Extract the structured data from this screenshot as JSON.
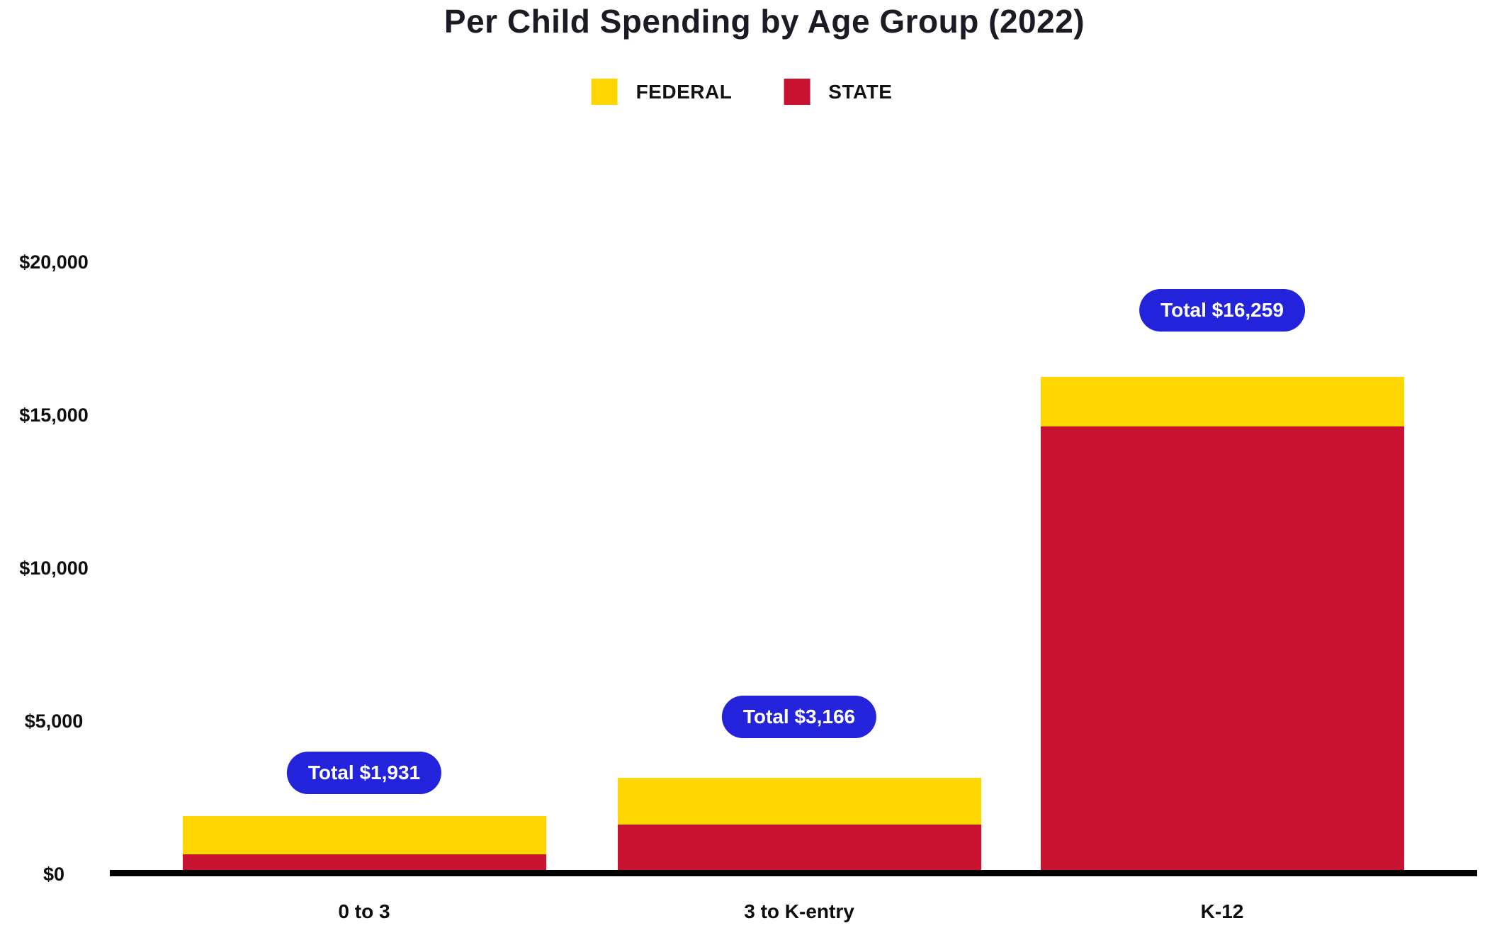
{
  "title": "Per Child Spending by Age Group (2022)",
  "legend": [
    {
      "label": "FEDERAL",
      "color": "#FFD602"
    },
    {
      "label": "STATE",
      "color": "#C9122F"
    }
  ],
  "colors": {
    "federal": "#FFD602",
    "state": "#C9122F",
    "badge": "#2323DC",
    "badge_text": "#FFFFFF",
    "axis": "#000000",
    "text": "#0D0D0D",
    "title_text": "#1B1B26"
  },
  "chart_data": {
    "type": "bar",
    "stacked": true,
    "title": "Per Child Spending by Age Group (2022)",
    "categories": [
      "0 to 3",
      "3 to K-entry",
      "K-12"
    ],
    "series": [
      {
        "name": "STATE",
        "color": "#C9122F",
        "values": [
          682,
          1641,
          14645
        ]
      },
      {
        "name": "FEDERAL",
        "color": "#FFD602",
        "values": [
          1249,
          1525,
          1614
        ]
      }
    ],
    "totals": [
      1931,
      3166,
      16259
    ],
    "total_badges": [
      "Total $1,931",
      "Total $3,166",
      "Total $16,259"
    ],
    "xlabel": "",
    "ylabel": "",
    "ylim": [
      0,
      20000
    ],
    "y_ticks": [
      {
        "label": "$0",
        "value": 0
      },
      {
        "label": "$5,000",
        "value": 5000
      },
      {
        "label": "$10,000",
        "value": 10000
      },
      {
        "label": "$15,000",
        "value": 15000
      },
      {
        "label": "$20,000",
        "value": 20000
      }
    ],
    "grid": false,
    "legend_position": "top-center"
  }
}
